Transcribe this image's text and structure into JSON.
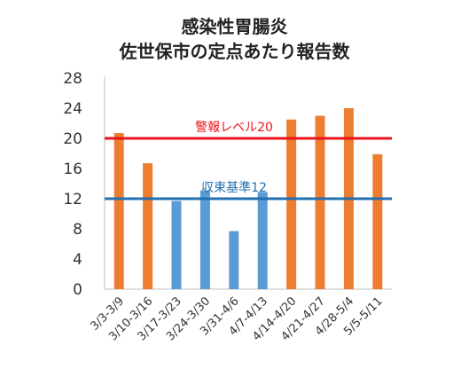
{
  "chart_data": {
    "type": "bar",
    "title_line1": "感染性胃腸炎",
    "title_line2": "佐世保市の定点あたり報告数",
    "categories": [
      "3/3-3/9",
      "3/10-3/16",
      "3/17-3/23",
      "3/24-3/30",
      "3/31-4/6",
      "4/7-4/13",
      "4/14-4/20",
      "4/21-4/27",
      "4/28-5/4",
      "5/5-5/11"
    ],
    "values": [
      20.7,
      16.7,
      11.7,
      13.1,
      7.7,
      12.9,
      22.5,
      23.0,
      24.0,
      17.9
    ],
    "bar_colors": [
      "#ED7D31",
      "#ED7D31",
      "#5B9BD5",
      "#5B9BD5",
      "#5B9BD5",
      "#5B9BD5",
      "#ED7D31",
      "#ED7D31",
      "#ED7D31",
      "#ED7D31"
    ],
    "ylim": [
      0,
      28
    ],
    "yticks": [
      0,
      4,
      8,
      12,
      16,
      20,
      24,
      28
    ],
    "reference_lines": [
      {
        "label": "警報レベル20",
        "value": 20,
        "color": "#E8141B"
      },
      {
        "label": "収束基準12",
        "value": 12,
        "color": "#1F6FB2"
      }
    ],
    "grid": false
  }
}
